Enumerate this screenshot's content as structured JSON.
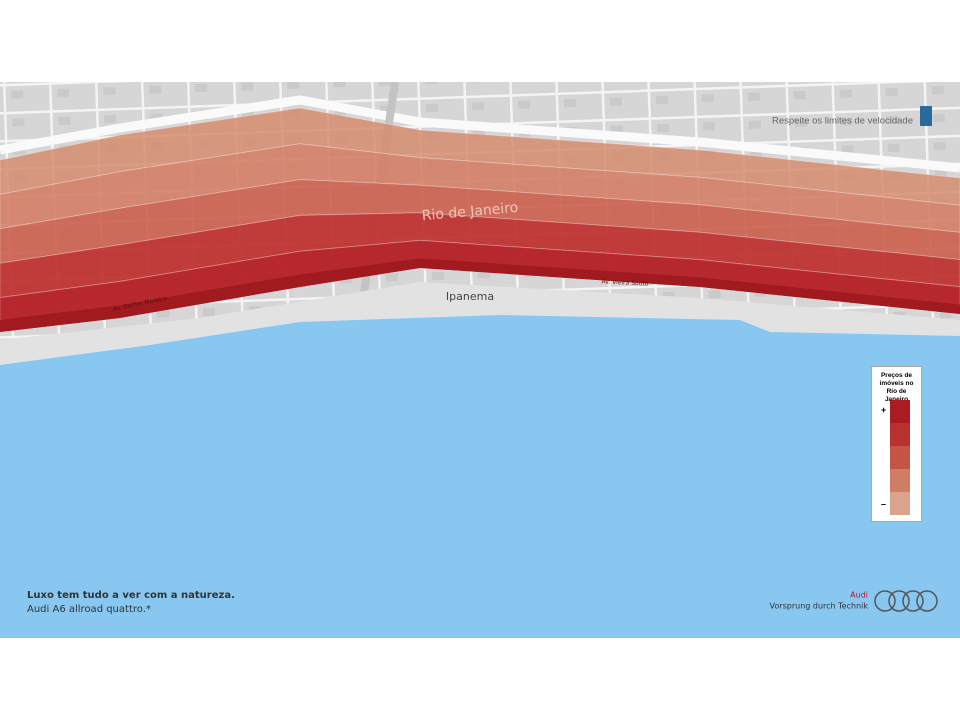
{
  "map": {
    "labels": {
      "city": "Rio de Janeiro",
      "neighborhood": "Ipanema",
      "street_1": "Av. Delfim Moreira",
      "street_2": "Av. Vieira Souto"
    },
    "notice": "Respeite os limites de velocidade",
    "legend": {
      "title": "Preços de imóveis no Rio de Janeiro",
      "high": "+",
      "low": "–"
    }
  },
  "ad": {
    "headline": "Luxo tem tudo a ver com a natureza.",
    "product": "Audi A6 allroad quattro.*",
    "brand": "Audi",
    "slogan": "Vorsprung durch Technik"
  }
}
